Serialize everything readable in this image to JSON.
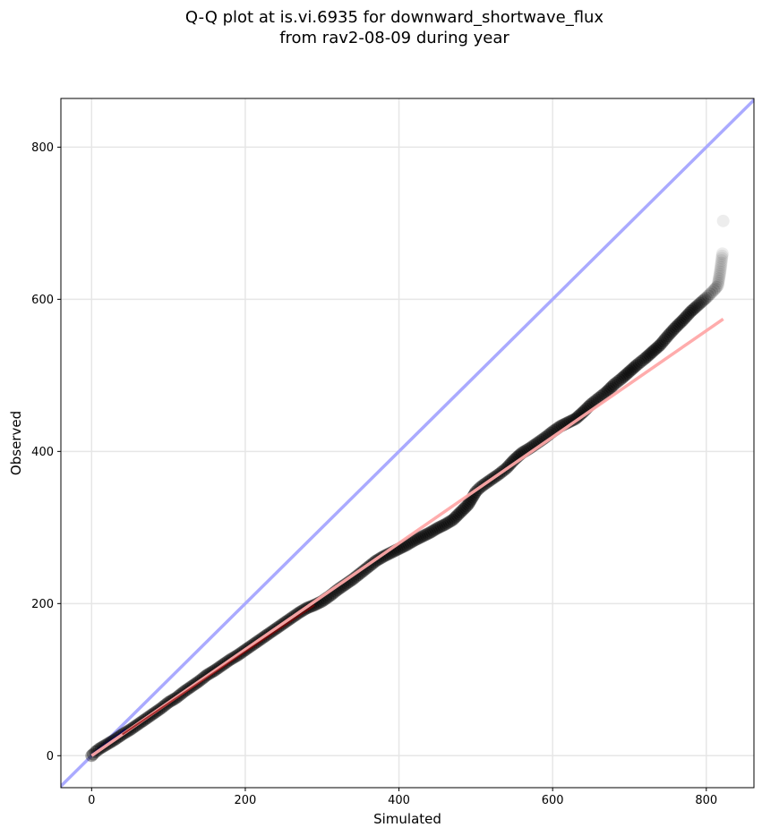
{
  "chart_data": {
    "type": "scatter",
    "title_line1": "Q-Q plot at is.vi.6935 for downward_shortwave_flux",
    "title_line2": "from rav2-08-09 during year",
    "xlabel": "Simulated",
    "ylabel": "Observed",
    "xlim": [
      -40,
      862
    ],
    "ylim": [
      -42,
      864
    ],
    "xticks": [
      0,
      200,
      400,
      600,
      800
    ],
    "yticks": [
      0,
      200,
      400,
      600,
      800
    ],
    "grid": true,
    "reference_line": {
      "name": "1:1",
      "color": "#aaaaff",
      "slope": 1,
      "intercept": 0
    },
    "fit_line": {
      "color": "#ffa8a8",
      "x": [
        0,
        822
      ],
      "y": [
        0,
        574
      ]
    },
    "points_color": "#000000",
    "quantiles": {
      "x": [
        0,
        2,
        5,
        10,
        20,
        30,
        40,
        50,
        60,
        70,
        80,
        90,
        100,
        110,
        120,
        130,
        140,
        150,
        160,
        170,
        180,
        190,
        200,
        210,
        220,
        230,
        240,
        250,
        260,
        270,
        280,
        290,
        300,
        310,
        320,
        330,
        340,
        350,
        360,
        370,
        380,
        390,
        400,
        410,
        420,
        430,
        440,
        450,
        460,
        470,
        480,
        490,
        500,
        505,
        510,
        520,
        530,
        540,
        550,
        560,
        570,
        580,
        590,
        600,
        610,
        620,
        630,
        640,
        650,
        660,
        670,
        680,
        690,
        700,
        710,
        720,
        730,
        740,
        750,
        760,
        770,
        780,
        790,
        800,
        805,
        810,
        815,
        818,
        821
      ],
      "y": [
        0,
        2,
        5,
        9,
        15,
        21,
        28,
        34,
        41,
        48,
        55,
        62,
        70,
        76,
        84,
        91,
        98,
        106,
        112,
        119,
        126,
        132,
        139,
        146,
        153,
        160,
        167,
        174,
        181,
        188,
        194,
        198,
        203,
        210,
        218,
        225,
        232,
        240,
        248,
        256,
        262,
        267,
        272,
        277,
        283,
        288,
        293,
        299,
        304,
        310,
        320,
        330,
        347,
        352,
        356,
        363,
        370,
        378,
        389,
        398,
        404,
        411,
        418,
        426,
        433,
        438,
        443,
        452,
        462,
        470,
        478,
        488,
        496,
        505,
        514,
        522,
        531,
        540,
        552,
        563,
        573,
        584,
        593,
        602,
        607,
        612,
        618,
        636,
        660
      ]
    },
    "outlier_points": {
      "x": [
        822
      ],
      "y": [
        703
      ]
    }
  }
}
